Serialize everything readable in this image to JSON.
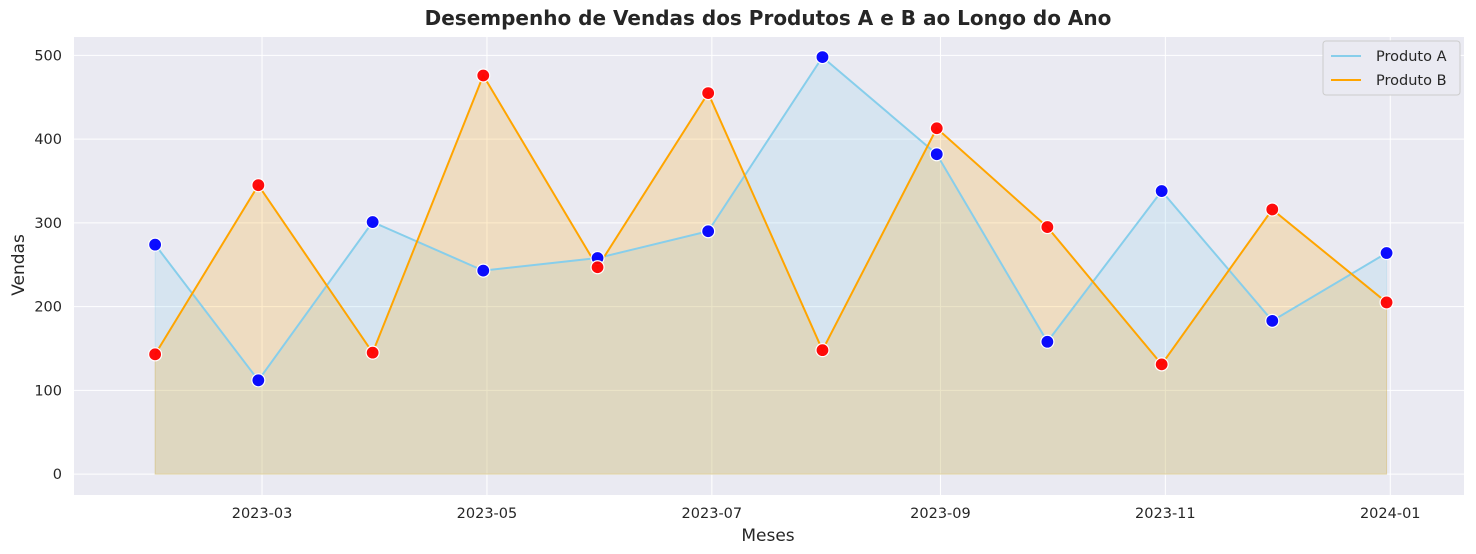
{
  "chart_data": {
    "type": "area",
    "title": "Desempenho de Vendas dos Produtos A e B ao Longo do Ano",
    "xlabel": "Meses",
    "ylabel": "Vendas",
    "x": [
      "2023-01-31",
      "2023-02-28",
      "2023-03-31",
      "2023-04-30",
      "2023-05-31",
      "2023-06-30",
      "2023-07-31",
      "2023-08-31",
      "2023-09-30",
      "2023-10-31",
      "2023-11-30",
      "2023-12-31"
    ],
    "x_ticks": [
      "2023-03",
      "2023-05",
      "2023-07",
      "2023-09",
      "2023-11",
      "2024-01"
    ],
    "x_tick_dates": [
      "2023-03-01",
      "2023-05-01",
      "2023-07-01",
      "2023-09-01",
      "2023-11-01",
      "2024-01-01"
    ],
    "y_ticks": [
      0,
      100,
      200,
      300,
      400,
      500
    ],
    "xlim": [
      "2023-01-09",
      "2024-01-21"
    ],
    "ylim": [
      -25,
      522
    ],
    "grid": true,
    "legend_position": "top-right",
    "series": [
      {
        "name": "Produto A",
        "values": [
          274,
          112,
          301,
          243,
          258,
          290,
          498,
          382,
          158,
          338,
          183,
          264
        ],
        "color": "#87ceeb",
        "marker_color": "#0000ff"
      },
      {
        "name": "Produto B",
        "values": [
          143,
          345,
          145,
          476,
          247,
          455,
          148,
          413,
          295,
          131,
          316,
          205
        ],
        "color": "#ffa500",
        "marker_color": "#ff0000"
      }
    ],
    "background_color": "#eaeaf2",
    "grid_color": "#ffffff"
  }
}
